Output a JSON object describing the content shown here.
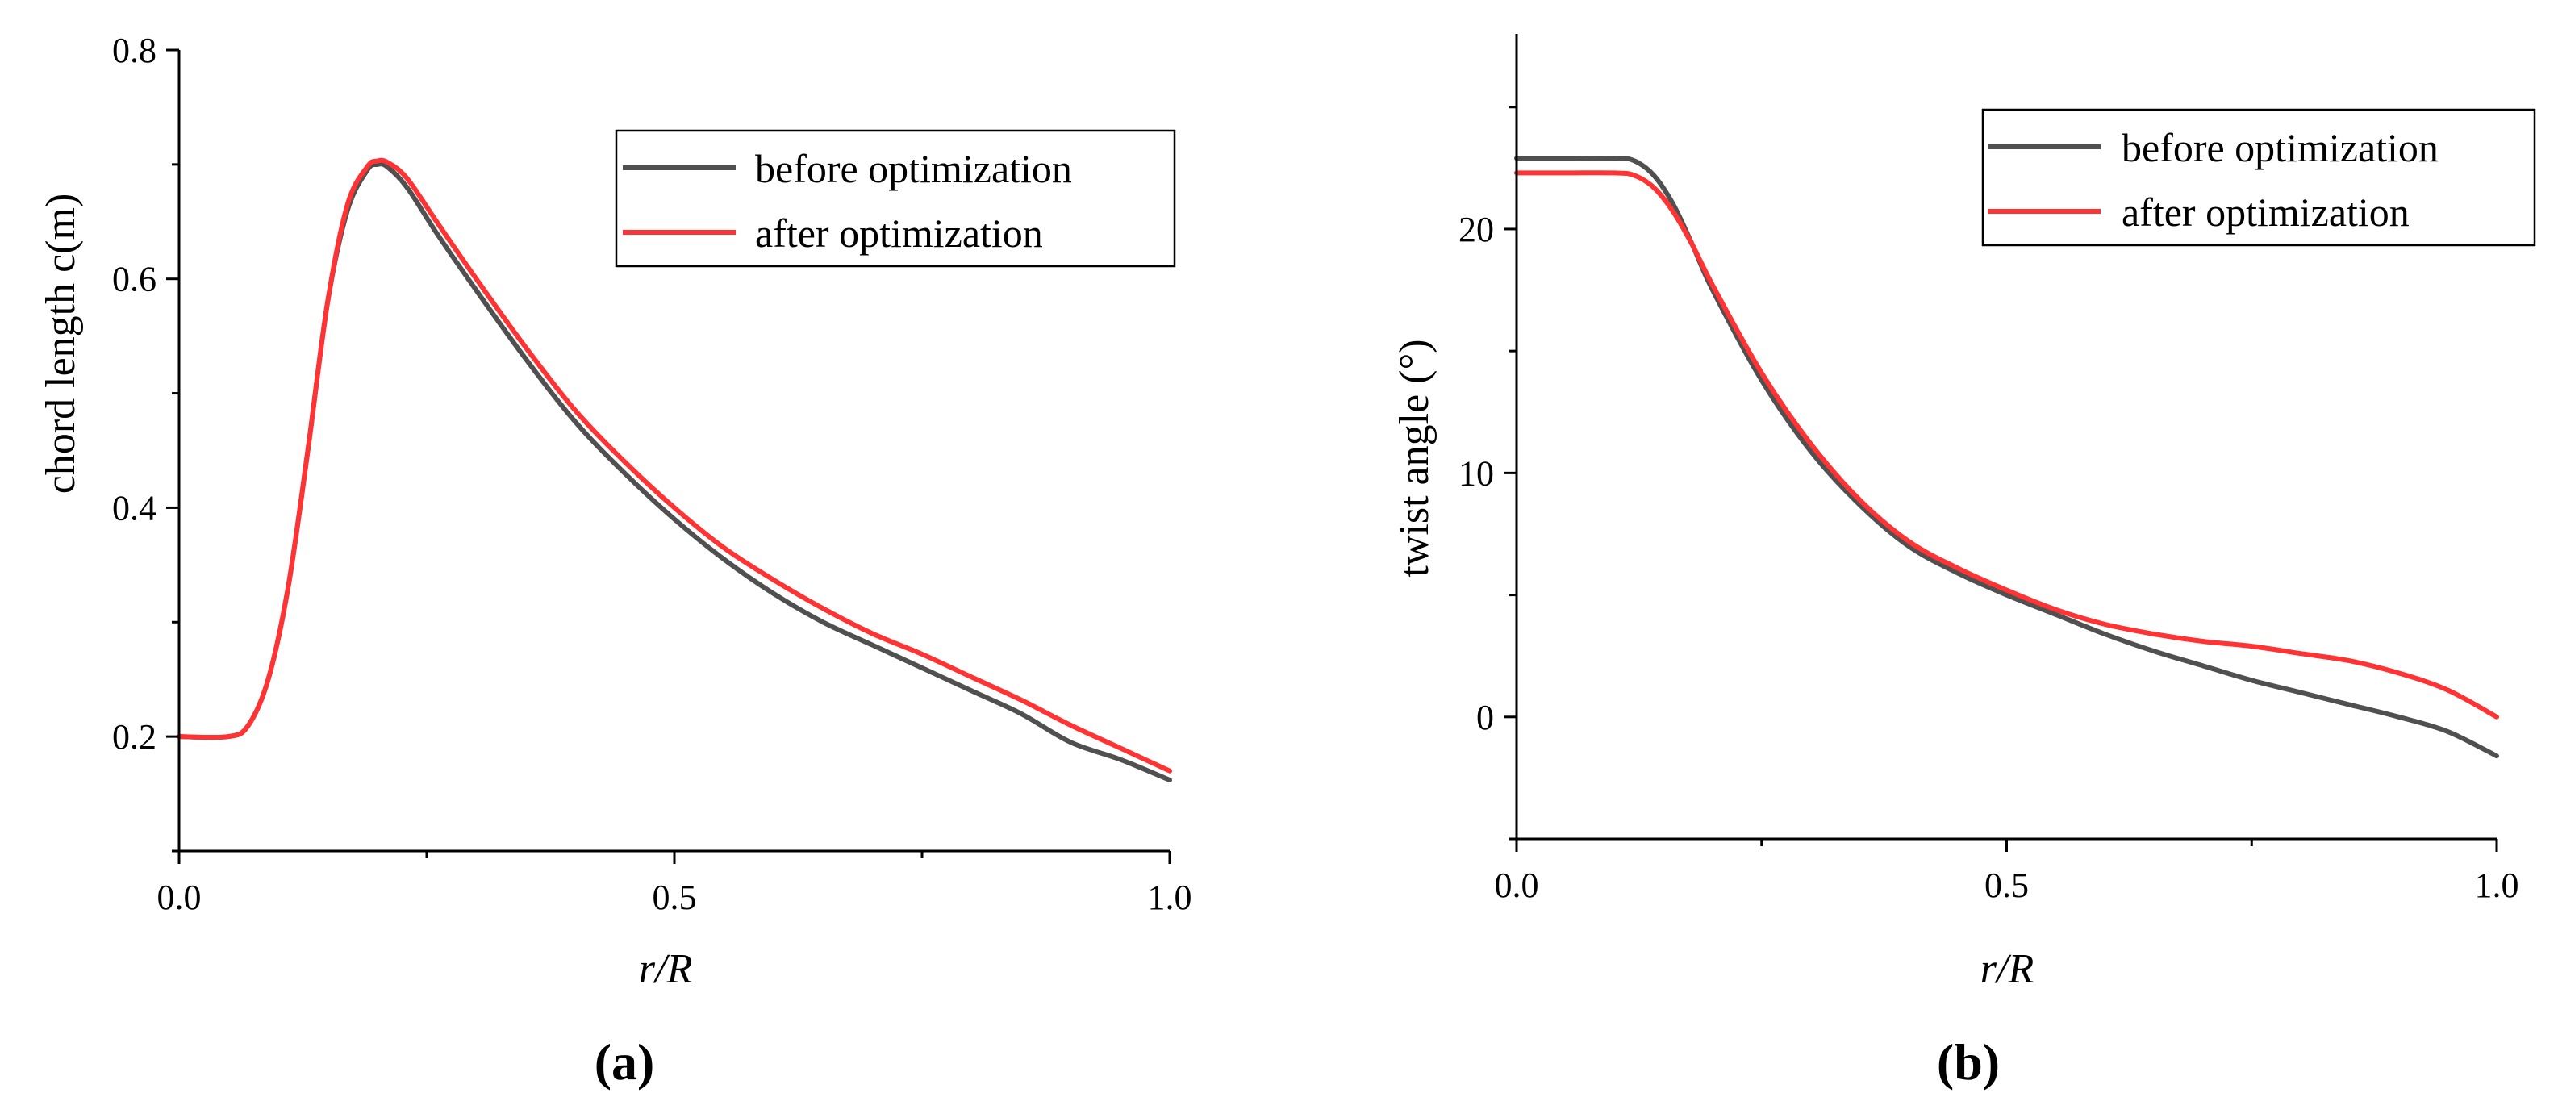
{
  "chart_data": [
    {
      "id": "a",
      "type": "line",
      "panel_label": "(a)",
      "title": "",
      "xlabel": "r/R",
      "ylabel": "chord length c(m)",
      "xlim": [
        0.0,
        1.0
      ],
      "ylim": [
        0.1,
        0.8
      ],
      "xticks": [
        "0.0",
        "0.5",
        "1.0"
      ],
      "xtick_values": [
        0.0,
        0.5,
        1.0
      ],
      "xminor": [
        0.25,
        0.75
      ],
      "yticks": [
        "0.2",
        "0.4",
        "0.6",
        "0.8"
      ],
      "ytick_values": [
        0.2,
        0.4,
        0.6,
        0.8
      ],
      "yminor": [
        0.1,
        0.3,
        0.5,
        0.7
      ],
      "legend_position": "top-right",
      "series": [
        {
          "name": "before optimization",
          "color": "#505050",
          "x": [
            0.0,
            0.05,
            0.07,
            0.09,
            0.11,
            0.13,
            0.15,
            0.17,
            0.19,
            0.2,
            0.21,
            0.23,
            0.26,
            0.3,
            0.35,
            0.4,
            0.45,
            0.5,
            0.55,
            0.6,
            0.65,
            0.7,
            0.75,
            0.8,
            0.85,
            0.9,
            0.95,
            1.0
          ],
          "values": [
            0.2,
            0.2,
            0.21,
            0.25,
            0.33,
            0.45,
            0.58,
            0.66,
            0.695,
            0.7,
            0.698,
            0.68,
            0.64,
            0.59,
            0.53,
            0.475,
            0.43,
            0.39,
            0.355,
            0.325,
            0.3,
            0.28,
            0.26,
            0.24,
            0.22,
            0.195,
            0.18,
            0.162
          ]
        },
        {
          "name": "after optimization",
          "color": "#ff3333",
          "x": [
            0.0,
            0.05,
            0.07,
            0.09,
            0.11,
            0.13,
            0.15,
            0.17,
            0.19,
            0.2,
            0.21,
            0.23,
            0.26,
            0.3,
            0.35,
            0.4,
            0.45,
            0.5,
            0.55,
            0.6,
            0.65,
            0.7,
            0.75,
            0.8,
            0.85,
            0.9,
            0.95,
            1.0
          ],
          "values": [
            0.2,
            0.2,
            0.21,
            0.25,
            0.33,
            0.45,
            0.58,
            0.665,
            0.698,
            0.703,
            0.702,
            0.688,
            0.65,
            0.6,
            0.54,
            0.485,
            0.44,
            0.4,
            0.365,
            0.337,
            0.312,
            0.29,
            0.272,
            0.252,
            0.232,
            0.21,
            0.19,
            0.17
          ]
        }
      ]
    },
    {
      "id": "b",
      "type": "line",
      "panel_label": "(b)",
      "title": "",
      "xlabel": "r/R",
      "ylabel": "twist angle (°)",
      "xlim": [
        0.0,
        1.0
      ],
      "ylim": [
        -5,
        28
      ],
      "xticks": [
        "0.0",
        "0.5",
        "1.0"
      ],
      "xtick_values": [
        0.0,
        0.5,
        1.0
      ],
      "xminor": [
        0.25,
        0.75
      ],
      "yticks": [
        "0",
        "10",
        "20"
      ],
      "ytick_values": [
        0,
        10,
        20
      ],
      "yminor": [
        -5,
        5,
        15,
        25
      ],
      "legend_position": "top-right",
      "series": [
        {
          "name": "before optimization",
          "color": "#505050",
          "x": [
            0.0,
            0.05,
            0.1,
            0.12,
            0.14,
            0.16,
            0.18,
            0.2,
            0.25,
            0.3,
            0.35,
            0.4,
            0.45,
            0.5,
            0.55,
            0.6,
            0.65,
            0.7,
            0.75,
            0.8,
            0.85,
            0.9,
            0.95,
            1.0
          ],
          "values": [
            22.9,
            22.9,
            22.9,
            22.8,
            22.2,
            21.0,
            19.3,
            17.5,
            13.8,
            10.9,
            8.7,
            7.0,
            5.9,
            5.0,
            4.2,
            3.4,
            2.7,
            2.1,
            1.5,
            1.0,
            0.5,
            0.0,
            -0.6,
            -1.6
          ]
        },
        {
          "name": "after optimization",
          "color": "#ff3333",
          "x": [
            0.0,
            0.05,
            0.1,
            0.12,
            0.14,
            0.16,
            0.18,
            0.2,
            0.25,
            0.3,
            0.35,
            0.4,
            0.45,
            0.5,
            0.55,
            0.6,
            0.65,
            0.7,
            0.75,
            0.8,
            0.85,
            0.9,
            0.95,
            1.0
          ],
          "values": [
            22.3,
            22.3,
            22.3,
            22.2,
            21.7,
            20.7,
            19.3,
            17.7,
            14.1,
            11.2,
            8.9,
            7.2,
            6.1,
            5.2,
            4.4,
            3.8,
            3.4,
            3.1,
            2.9,
            2.6,
            2.3,
            1.8,
            1.1,
            0.0
          ]
        }
      ]
    }
  ]
}
